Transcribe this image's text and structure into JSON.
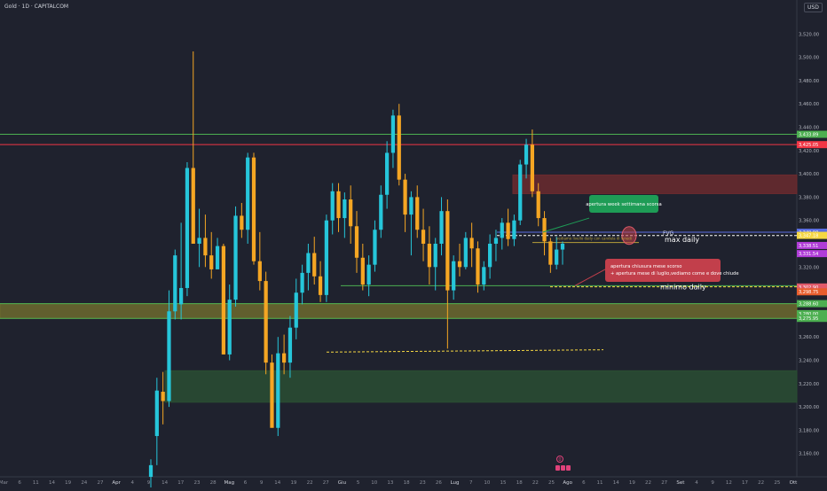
{
  "header": {
    "symbol_label": "Gold · 1D · CAPITALCOM"
  },
  "currency_button": "USD",
  "chart_data": {
    "type": "candlestick",
    "instrument": "Gold",
    "timeframe": "1D",
    "ylim": [
      3140,
      3540
    ],
    "y_ticks": [
      3160,
      3180,
      3200,
      3220,
      3240,
      3260,
      3280,
      3300,
      3320,
      3340,
      3360,
      3380,
      3400,
      3420,
      3440,
      3460,
      3480,
      3500,
      3520
    ],
    "y_tick_labels": [
      "3,160.00",
      "3,180.00",
      "3,200.00",
      "3,220.00",
      "3,240.00",
      "3,260.00",
      "3,280.00",
      "3,300.00",
      "3,320.00",
      "3,340.00",
      "3,360.00",
      "3,380.00",
      "3,400.00",
      "3,420.00",
      "3,440.00",
      "3,460.00",
      "3,480.00",
      "3,500.00",
      "3,520.00"
    ],
    "x_tick_labels": [
      "Mar",
      "6",
      "11",
      "14",
      "19",
      "24",
      "27",
      "Apr",
      "4",
      "9",
      "14",
      "17",
      "23",
      "28",
      "Mag",
      "6",
      "9",
      "14",
      "19",
      "22",
      "27",
      "Giu",
      "5",
      "10",
      "13",
      "18",
      "23",
      "26",
      "Lug",
      "7",
      "10",
      "15",
      "18",
      "22",
      "25",
      "Ago",
      "6",
      "11",
      "14",
      "19",
      "22",
      "27",
      "Set",
      "4",
      "9",
      "12",
      "17",
      "22",
      "25",
      "Ott"
    ],
    "x_major_labels": [
      "Apr",
      "Mag",
      "Giu",
      "Lug",
      "Ago",
      "Set",
      "Ott"
    ],
    "candles_ohlc": [
      [
        3140,
        3155,
        3120,
        3150
      ],
      [
        3175,
        3225,
        3150,
        3214
      ],
      [
        3213,
        3230,
        3185,
        3205
      ],
      [
        3205,
        3300,
        3200,
        3282
      ],
      [
        3282,
        3335,
        3275,
        3330
      ],
      [
        3288,
        3358,
        3275,
        3302
      ],
      [
        3302,
        3410,
        3295,
        3405
      ],
      [
        3405,
        3505,
        3380,
        3340
      ],
      [
        3340,
        3370,
        3320,
        3345
      ],
      [
        3345,
        3365,
        3320,
        3330
      ],
      [
        3330,
        3350,
        3310,
        3318
      ],
      [
        3318,
        3345,
        3320,
        3338
      ],
      [
        3338,
        3340,
        3245,
        3245
      ],
      [
        3245,
        3305,
        3240,
        3292
      ],
      [
        3292,
        3372,
        3286,
        3364
      ],
      [
        3364,
        3375,
        3345,
        3352
      ],
      [
        3352,
        3418,
        3340,
        3414
      ],
      [
        3414,
        3418,
        3322,
        3325
      ],
      [
        3325,
        3350,
        3300,
        3308
      ],
      [
        3308,
        3316,
        3228,
        3238
      ],
      [
        3238,
        3245,
        3185,
        3182
      ],
      [
        3182,
        3260,
        3175,
        3246
      ],
      [
        3246,
        3262,
        3228,
        3238
      ],
      [
        3238,
        3278,
        3225,
        3268
      ],
      [
        3268,
        3310,
        3258,
        3298
      ],
      [
        3298,
        3322,
        3288,
        3315
      ],
      [
        3315,
        3340,
        3300,
        3332
      ],
      [
        3332,
        3346,
        3305,
        3312
      ],
      [
        3312,
        3325,
        3290,
        3296
      ],
      [
        3296,
        3365,
        3290,
        3360
      ],
      [
        3360,
        3392,
        3348,
        3385
      ],
      [
        3385,
        3392,
        3350,
        3362
      ],
      [
        3362,
        3384,
        3345,
        3378
      ],
      [
        3378,
        3390,
        3340,
        3355
      ],
      [
        3355,
        3368,
        3315,
        3328
      ],
      [
        3328,
        3340,
        3300,
        3305
      ],
      [
        3305,
        3330,
        3295,
        3322
      ],
      [
        3322,
        3360,
        3316,
        3352
      ],
      [
        3352,
        3390,
        3345,
        3382
      ],
      [
        3382,
        3428,
        3370,
        3418
      ],
      [
        3418,
        3455,
        3405,
        3450
      ],
      [
        3450,
        3460,
        3390,
        3395
      ],
      [
        3395,
        3400,
        3350,
        3365
      ],
      [
        3365,
        3385,
        3330,
        3380
      ],
      [
        3380,
        3390,
        3345,
        3352
      ],
      [
        3352,
        3370,
        3325,
        3340
      ],
      [
        3340,
        3355,
        3305,
        3320
      ],
      [
        3320,
        3345,
        3300,
        3340
      ],
      [
        3340,
        3380,
        3330,
        3368
      ],
      [
        3368,
        3378,
        3250,
        3300
      ],
      [
        3300,
        3330,
        3292,
        3325
      ],
      [
        3325,
        3340,
        3312,
        3320
      ],
      [
        3320,
        3350,
        3318,
        3345
      ],
      [
        3345,
        3358,
        3320,
        3336
      ],
      [
        3336,
        3342,
        3298,
        3305
      ],
      [
        3305,
        3325,
        3300,
        3320
      ],
      [
        3320,
        3348,
        3310,
        3340
      ],
      [
        3340,
        3352,
        3325,
        3345
      ],
      [
        3345,
        3362,
        3335,
        3358
      ],
      [
        3358,
        3370,
        3338,
        3344
      ],
      [
        3344,
        3365,
        3338,
        3360
      ],
      [
        3360,
        3412,
        3356,
        3408
      ],
      [
        3408,
        3430,
        3396,
        3425
      ],
      [
        3425,
        3438,
        3380,
        3385
      ],
      [
        3385,
        3392,
        3355,
        3362
      ],
      [
        3362,
        3368,
        3330,
        3342
      ],
      [
        3342,
        3345,
        3315,
        3322
      ],
      [
        3322,
        3346,
        3318,
        3335
      ],
      [
        3335,
        3342,
        3322,
        3340
      ]
    ],
    "horizontal_levels": [
      {
        "price": 3433.89,
        "label": "3,433.89",
        "color": "#4caf50"
      },
      {
        "price": 3425.05,
        "label": "3,425.05",
        "color": "#f23645"
      },
      {
        "price": 3349.9,
        "label": "3,349.90",
        "color": "#5b6ee1"
      },
      {
        "price": 3347.18,
        "label": "3,347.18",
        "color": "#f5d742"
      },
      {
        "price": 3338.51,
        "label": "3,338.51",
        "color": "#b03cd8"
      },
      {
        "price": 3331.54,
        "label": "3,331.54",
        "color": "#b03cd8"
      },
      {
        "price": 3302.9,
        "label": "3,302.90",
        "color": "#e05a6a"
      },
      {
        "price": 3298.75,
        "label": "3,298.75",
        "color": "#e85d2c"
      },
      {
        "price": 3288.6,
        "label": "3,288.60",
        "color": "#4caf50"
      },
      {
        "price": 3280.0,
        "label": "3,280.00",
        "color": "#4caf50"
      },
      {
        "price": 3275.95,
        "label": "3,275.95",
        "color": "#4caf50"
      }
    ],
    "zones": [
      {
        "name": "supply-zone",
        "from": 3383,
        "to": 3399,
        "color": "#6b2a2e"
      },
      {
        "name": "yellow-zone",
        "from": 3275.95,
        "to": 3288.6,
        "color": "#6d6a2e"
      },
      {
        "name": "green-zone",
        "from": 3204,
        "to": 3231,
        "color": "#2a4e33"
      }
    ],
    "annotations": [
      {
        "text": "apertura week settimana scorsa",
        "color": "#1e9c56"
      },
      {
        "text": "apertura chiusura mese scorso\n+ apertura mese di luglio,vediamo come e dove chiude",
        "color": "#c23f4b"
      },
      {
        "text": "FVG",
        "color": "#d1d4dc"
      },
      {
        "text": "max daily",
        "color": "#ffffff"
      },
      {
        "text": "minimo daily",
        "color": "#ffffff"
      },
      {
        "text": "vediamo livello daily con candela di lunedi",
        "color": "#b8a13a"
      },
      {
        "text": "0",
        "color": "#e0427a"
      }
    ]
  }
}
